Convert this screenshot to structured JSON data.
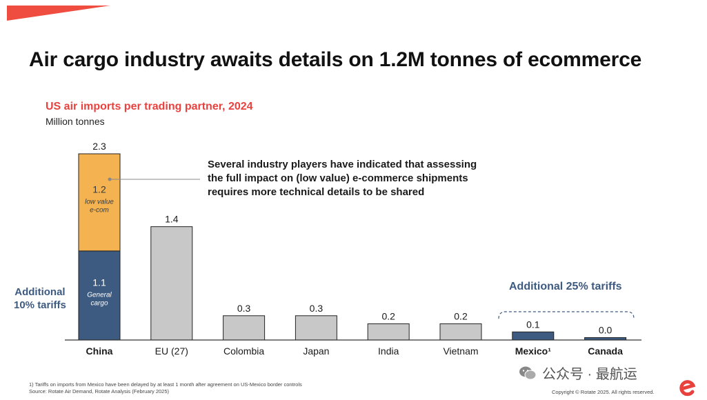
{
  "slide": {
    "title": "Air cargo industry awaits details on 1.2M tonnes of ecommerce",
    "accent_color": "#e8423f",
    "tariff_label_color": "#3d5a80",
    "annotation_lines": [
      "Several industry players have indicated that assessing",
      "the full impact on (low value) e-commerce shipments",
      "requires more technical details to be shared"
    ],
    "additional_10_lines": [
      "Additional",
      "10% tariffs"
    ],
    "additional_25": "Additional 25% tariffs",
    "footnote_lines": [
      "1) Tariffs on imports from Mexico have been delayed by at least 1 month after agreement on US-Mexico border controls",
      "Source: Rotate Air Demand, Rotate Analysis (February 2025)"
    ],
    "copyright": "Copyright © Rotate 2025. All rights reserved.",
    "watermark": "公众号 · 最航运",
    "watermark_icon": "wechat-icon",
    "logo_icon": "rotate-logo-icon"
  },
  "chart_data": {
    "type": "bar",
    "title": "US air imports per trading partner, 2024",
    "subtitle": "Million tonnes",
    "ylim": [
      0,
      2.3
    ],
    "grid": false,
    "legend": "none",
    "categories": [
      "China",
      "EU (27)",
      "Colombia",
      "Japan",
      "India",
      "Vietnam",
      "Mexico¹",
      "Canada"
    ],
    "bold_categories": [
      "China",
      "Mexico¹",
      "Canada"
    ],
    "totals": [
      "2.3",
      "1.4",
      "0.3",
      "0.3",
      "0.2",
      "0.2",
      "0.1",
      "0.0"
    ],
    "values": [
      2.3,
      1.4,
      0.3,
      0.3,
      0.2,
      0.2,
      0.1,
      0.03
    ],
    "bar_colors": [
      "#3d5a80",
      "#c8c8c8",
      "#c8c8c8",
      "#c8c8c8",
      "#c8c8c8",
      "#c8c8c8",
      "#3d5a80",
      "#3d5a80"
    ],
    "china_stack": [
      {
        "name": "General cargo",
        "value": 1.1,
        "label": "1.1",
        "sublabel_lines": [
          "General",
          "cargo"
        ],
        "color": "#3d5a80",
        "text_color": "#ffffff"
      },
      {
        "name": "low value e-com",
        "value": 1.2,
        "label": "1.2",
        "sublabel_lines": [
          "low value",
          "e-com"
        ],
        "color": "#f4b350",
        "text_color": "#3a3a3a"
      }
    ]
  }
}
